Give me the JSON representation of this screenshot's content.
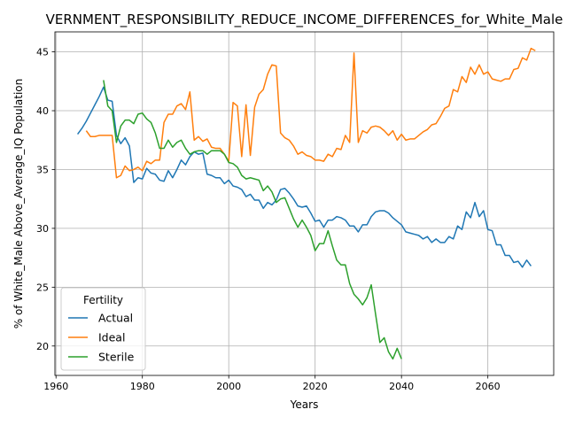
{
  "chart_data": {
    "type": "line",
    "title": "VERNMENT_RESPONSIBILITY_REDUCE_INCOME_DIFFERENCES_for_White_Male",
    "xlabel": "Years",
    "ylabel": "% of White_Male Above_Average_IQ Population",
    "xlim": [
      1959.75,
      2075.25
    ],
    "ylim": [
      17.5,
      46.7
    ],
    "xticks": [
      1960,
      1980,
      2000,
      2020,
      2040,
      2060
    ],
    "yticks": [
      20,
      25,
      30,
      35,
      40,
      45
    ],
    "grid": true,
    "legend": {
      "title": "Fertility",
      "placement": "lower-left"
    },
    "series": [
      {
        "name": "Actual",
        "color": "#1f77b4",
        "points": [
          [
            1965,
            38.0
          ],
          [
            1966,
            38.5
          ],
          [
            1967,
            39.1
          ],
          [
            1968,
            39.8
          ],
          [
            1969,
            40.5
          ],
          [
            1970,
            41.2
          ],
          [
            1971,
            42.0
          ],
          [
            1972,
            40.9
          ],
          [
            1973,
            40.8
          ],
          [
            1974,
            37.9
          ],
          [
            1975,
            37.2
          ],
          [
            1976,
            37.7
          ],
          [
            1977,
            37.0
          ],
          [
            1978,
            33.9
          ],
          [
            1979,
            34.3
          ],
          [
            1980,
            34.2
          ],
          [
            1981,
            35.1
          ],
          [
            1982,
            34.7
          ],
          [
            1983,
            34.6
          ],
          [
            1984,
            34.1
          ],
          [
            1985,
            34.0
          ],
          [
            1986,
            34.9
          ],
          [
            1987,
            34.3
          ],
          [
            1988,
            35.0
          ],
          [
            1989,
            35.8
          ],
          [
            1990,
            35.4
          ],
          [
            1991,
            36.1
          ],
          [
            1992,
            36.5
          ],
          [
            1993,
            36.3
          ],
          [
            1994,
            36.4
          ],
          [
            1995,
            34.6
          ],
          [
            1996,
            34.5
          ],
          [
            1997,
            34.3
          ],
          [
            1998,
            34.3
          ],
          [
            1999,
            33.8
          ],
          [
            2000,
            34.1
          ],
          [
            2001,
            33.6
          ],
          [
            2002,
            33.5
          ],
          [
            2003,
            33.3
          ],
          [
            2004,
            32.7
          ],
          [
            2005,
            32.9
          ],
          [
            2006,
            32.4
          ],
          [
            2007,
            32.4
          ],
          [
            2008,
            31.7
          ],
          [
            2009,
            32.2
          ],
          [
            2010,
            32.0
          ],
          [
            2011,
            32.4
          ],
          [
            2012,
            33.3
          ],
          [
            2013,
            33.4
          ],
          [
            2014,
            33.0
          ],
          [
            2015,
            32.5
          ],
          [
            2016,
            31.9
          ],
          [
            2017,
            31.8
          ],
          [
            2018,
            31.9
          ],
          [
            2019,
            31.3
          ],
          [
            2020,
            30.6
          ],
          [
            2021,
            30.7
          ],
          [
            2022,
            30.1
          ],
          [
            2023,
            30.7
          ],
          [
            2024,
            30.7
          ],
          [
            2025,
            31.0
          ],
          [
            2026,
            30.9
          ],
          [
            2027,
            30.7
          ],
          [
            2028,
            30.2
          ],
          [
            2029,
            30.2
          ],
          [
            2030,
            29.7
          ],
          [
            2031,
            30.3
          ],
          [
            2032,
            30.3
          ],
          [
            2033,
            31.0
          ],
          [
            2034,
            31.4
          ],
          [
            2035,
            31.5
          ],
          [
            2036,
            31.5
          ],
          [
            2037,
            31.3
          ],
          [
            2038,
            30.9
          ],
          [
            2039,
            30.6
          ],
          [
            2040,
            30.3
          ],
          [
            2041,
            29.7
          ],
          [
            2042,
            29.6
          ],
          [
            2043,
            29.5
          ],
          [
            2044,
            29.4
          ],
          [
            2045,
            29.1
          ],
          [
            2046,
            29.3
          ],
          [
            2047,
            28.8
          ],
          [
            2048,
            29.1
          ],
          [
            2049,
            28.8
          ],
          [
            2050,
            28.8
          ],
          [
            2051,
            29.3
          ],
          [
            2052,
            29.1
          ],
          [
            2053,
            30.2
          ],
          [
            2054,
            29.9
          ],
          [
            2055,
            31.4
          ],
          [
            2056,
            30.9
          ],
          [
            2057,
            32.2
          ],
          [
            2058,
            31.0
          ],
          [
            2059,
            31.5
          ],
          [
            2060,
            29.9
          ],
          [
            2061,
            29.8
          ],
          [
            2062,
            28.6
          ],
          [
            2063,
            28.6
          ],
          [
            2064,
            27.7
          ],
          [
            2065,
            27.7
          ],
          [
            2066,
            27.1
          ],
          [
            2067,
            27.2
          ],
          [
            2068,
            26.7
          ],
          [
            2069,
            27.3
          ],
          [
            2070,
            26.8
          ]
        ]
      },
      {
        "name": "Ideal",
        "color": "#ff7f0e",
        "points": [
          [
            1967,
            38.3
          ],
          [
            1968,
            37.8
          ],
          [
            1969,
            37.8
          ],
          [
            1970,
            37.9
          ],
          [
            1971,
            37.9
          ],
          [
            1972,
            37.9
          ],
          [
            1973,
            37.9
          ],
          [
            1974,
            34.3
          ],
          [
            1975,
            34.5
          ],
          [
            1976,
            35.3
          ],
          [
            1977,
            34.9
          ],
          [
            1978,
            35.0
          ],
          [
            1979,
            35.2
          ],
          [
            1980,
            34.9
          ],
          [
            1981,
            35.7
          ],
          [
            1982,
            35.5
          ],
          [
            1983,
            35.8
          ],
          [
            1984,
            35.8
          ],
          [
            1985,
            39.0
          ],
          [
            1986,
            39.7
          ],
          [
            1987,
            39.7
          ],
          [
            1988,
            40.4
          ],
          [
            1989,
            40.6
          ],
          [
            1990,
            40.1
          ],
          [
            1991,
            41.6
          ],
          [
            1992,
            37.5
          ],
          [
            1993,
            37.8
          ],
          [
            1994,
            37.4
          ],
          [
            1995,
            37.6
          ],
          [
            1996,
            36.9
          ],
          [
            1997,
            36.8
          ],
          [
            1998,
            36.8
          ],
          [
            1999,
            36.3
          ],
          [
            2000,
            35.7
          ],
          [
            2001,
            40.7
          ],
          [
            2002,
            40.4
          ],
          [
            2003,
            36.1
          ],
          [
            2004,
            40.5
          ],
          [
            2005,
            36.2
          ],
          [
            2006,
            40.3
          ],
          [
            2007,
            41.4
          ],
          [
            2008,
            41.8
          ],
          [
            2009,
            43.1
          ],
          [
            2010,
            43.9
          ],
          [
            2011,
            43.8
          ],
          [
            2012,
            38.1
          ],
          [
            2013,
            37.7
          ],
          [
            2014,
            37.5
          ],
          [
            2015,
            37.0
          ],
          [
            2016,
            36.3
          ],
          [
            2017,
            36.5
          ],
          [
            2018,
            36.2
          ],
          [
            2019,
            36.1
          ],
          [
            2020,
            35.8
          ],
          [
            2021,
            35.8
          ],
          [
            2022,
            35.7
          ],
          [
            2023,
            36.3
          ],
          [
            2024,
            36.1
          ],
          [
            2025,
            36.8
          ],
          [
            2026,
            36.7
          ],
          [
            2027,
            37.9
          ],
          [
            2028,
            37.3
          ],
          [
            2029,
            44.9
          ],
          [
            2030,
            37.3
          ],
          [
            2031,
            38.3
          ],
          [
            2032,
            38.1
          ],
          [
            2033,
            38.6
          ],
          [
            2034,
            38.7
          ],
          [
            2035,
            38.6
          ],
          [
            2036,
            38.3
          ],
          [
            2037,
            37.9
          ],
          [
            2038,
            38.3
          ],
          [
            2039,
            37.5
          ],
          [
            2040,
            38.0
          ],
          [
            2041,
            37.5
          ],
          [
            2042,
            37.6
          ],
          [
            2043,
            37.6
          ],
          [
            2044,
            37.9
          ],
          [
            2045,
            38.2
          ],
          [
            2046,
            38.4
          ],
          [
            2047,
            38.8
          ],
          [
            2048,
            38.9
          ],
          [
            2049,
            39.5
          ],
          [
            2050,
            40.2
          ],
          [
            2051,
            40.4
          ],
          [
            2052,
            41.8
          ],
          [
            2053,
            41.6
          ],
          [
            2054,
            42.9
          ],
          [
            2055,
            42.4
          ],
          [
            2056,
            43.7
          ],
          [
            2057,
            43.1
          ],
          [
            2058,
            43.9
          ],
          [
            2059,
            43.1
          ],
          [
            2060,
            43.3
          ],
          [
            2061,
            42.7
          ],
          [
            2062,
            42.6
          ],
          [
            2063,
            42.5
          ],
          [
            2064,
            42.7
          ],
          [
            2065,
            42.7
          ],
          [
            2066,
            43.5
          ],
          [
            2067,
            43.6
          ],
          [
            2068,
            44.5
          ],
          [
            2069,
            44.3
          ],
          [
            2070,
            45.3
          ],
          [
            2071,
            45.1
          ]
        ]
      },
      {
        "name": "Sterile",
        "color": "#2ca02c",
        "points": [
          [
            1971,
            42.6
          ],
          [
            1972,
            40.4
          ],
          [
            1973,
            40.0
          ],
          [
            1974,
            37.3
          ],
          [
            1975,
            38.7
          ],
          [
            1976,
            39.2
          ],
          [
            1977,
            39.2
          ],
          [
            1978,
            38.9
          ],
          [
            1979,
            39.7
          ],
          [
            1980,
            39.8
          ],
          [
            1981,
            39.3
          ],
          [
            1982,
            39.0
          ],
          [
            1983,
            38.1
          ],
          [
            1984,
            36.8
          ],
          [
            1985,
            36.8
          ],
          [
            1986,
            37.5
          ],
          [
            1987,
            36.9
          ],
          [
            1988,
            37.3
          ],
          [
            1989,
            37.5
          ],
          [
            1990,
            36.8
          ],
          [
            1991,
            36.3
          ],
          [
            1992,
            36.5
          ],
          [
            1993,
            36.6
          ],
          [
            1994,
            36.6
          ],
          [
            1995,
            36.3
          ],
          [
            1996,
            36.6
          ],
          [
            1997,
            36.6
          ],
          [
            1998,
            36.6
          ],
          [
            1999,
            36.3
          ],
          [
            2000,
            35.6
          ],
          [
            2001,
            35.5
          ],
          [
            2002,
            35.2
          ],
          [
            2003,
            34.5
          ],
          [
            2004,
            34.2
          ],
          [
            2005,
            34.3
          ],
          [
            2006,
            34.2
          ],
          [
            2007,
            34.1
          ],
          [
            2008,
            33.2
          ],
          [
            2009,
            33.6
          ],
          [
            2010,
            33.1
          ],
          [
            2011,
            32.2
          ],
          [
            2012,
            32.5
          ],
          [
            2013,
            32.6
          ],
          [
            2014,
            31.7
          ],
          [
            2015,
            30.8
          ],
          [
            2016,
            30.1
          ],
          [
            2017,
            30.7
          ],
          [
            2018,
            30.1
          ],
          [
            2019,
            29.4
          ],
          [
            2020,
            28.1
          ],
          [
            2021,
            28.7
          ],
          [
            2022,
            28.7
          ],
          [
            2023,
            29.8
          ],
          [
            2024,
            28.5
          ],
          [
            2025,
            27.3
          ],
          [
            2026,
            26.9
          ],
          [
            2027,
            26.9
          ],
          [
            2028,
            25.3
          ],
          [
            2029,
            24.4
          ],
          [
            2030,
            24.0
          ],
          [
            2031,
            23.5
          ],
          [
            2032,
            24.1
          ],
          [
            2033,
            25.2
          ],
          [
            2034,
            22.7
          ],
          [
            2035,
            20.3
          ],
          [
            2036,
            20.7
          ],
          [
            2037,
            19.5
          ],
          [
            2038,
            18.9
          ],
          [
            2039,
            19.8
          ],
          [
            2040,
            18.9
          ]
        ]
      }
    ]
  }
}
